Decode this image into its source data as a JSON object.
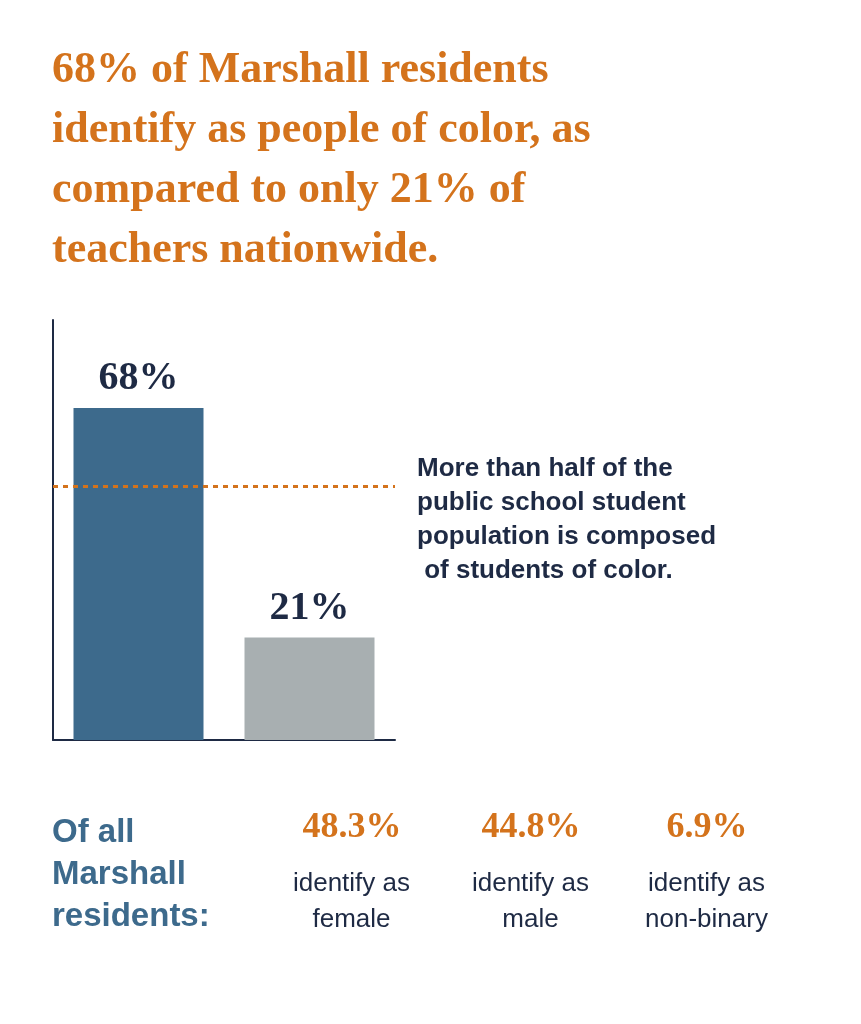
{
  "chart_data": [
    {
      "type": "bar",
      "title": "68% of Marshall residents identify as people of color, as compared to only 21% of teachers nationwide.",
      "categories": [
        null,
        null
      ],
      "values": [
        68,
        21
      ],
      "colors": [
        "#3d6a8c",
        "#a8afb1"
      ],
      "ylim": [
        0,
        86
      ],
      "data_labels": true,
      "value_labels": [
        "68%",
        "21%"
      ],
      "ref_lines": [
        {
          "axis": "y",
          "value": 52,
          "label": "More than half of the public school student population is composed of students of color.",
          "color": "#d4731c",
          "line_style": "dotted"
        }
      ]
    },
    {
      "type": "other",
      "title": "Of all Marshall residents:",
      "annotations": [
        "48.3%",
        "identify as female",
        "44.8%",
        "identify as male",
        "6.9%",
        "identify as non-binary"
      ]
    }
  ]
}
